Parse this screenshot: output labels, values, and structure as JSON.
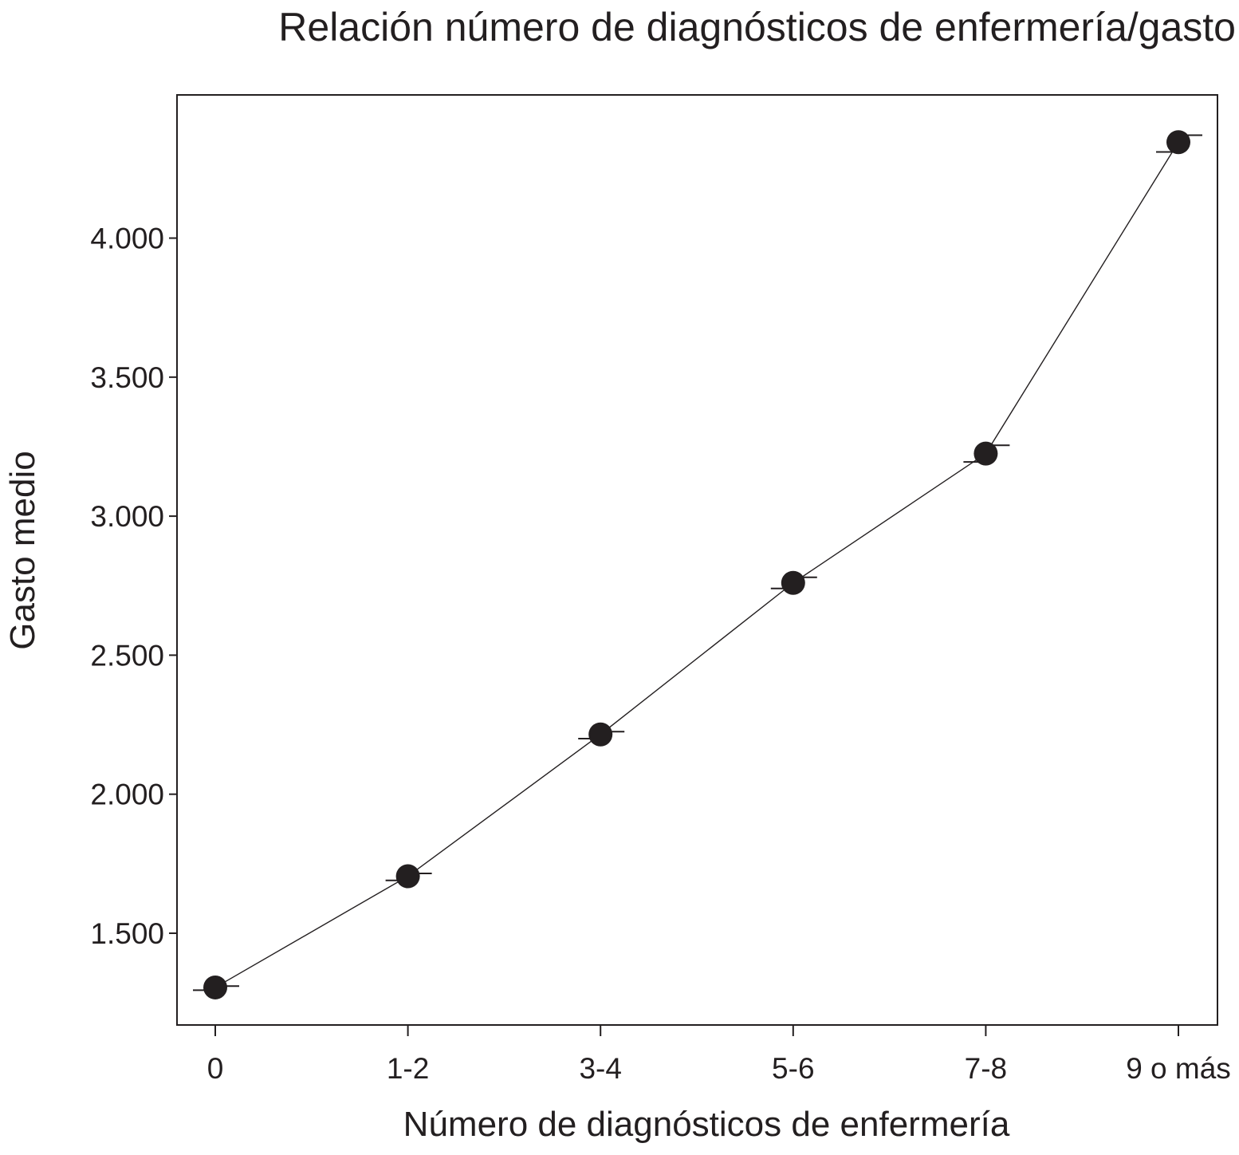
{
  "chart_data": {
    "type": "line",
    "title": "Relación número de diagnósticos de enfermería/gasto",
    "xlabel": "Número de diagnósticos de enfermería",
    "ylabel": "Gasto medio",
    "categories": [
      "0",
      "1-2",
      "3-4",
      "5-6",
      "7-8",
      "9 o más"
    ],
    "series": [
      {
        "values": [
          1305,
          1705,
          2215,
          2760,
          3225,
          4345
        ],
        "error_low": [
          1295,
          1690,
          2200,
          2740,
          3195,
          4310
        ],
        "error_high": [
          1310,
          1715,
          2225,
          2780,
          3255,
          4370
        ]
      }
    ],
    "yticks": [
      1500,
      2000,
      2500,
      3000,
      3500,
      4000
    ],
    "ytick_labels": [
      "1.500",
      "2.000",
      "2.500",
      "3.000",
      "3.500",
      "4.000"
    ],
    "ylim": [
      1170,
      4515
    ],
    "grid": false,
    "colors": {
      "marker": "#231f20",
      "line": "#231f20",
      "frame": "#231f20"
    }
  }
}
